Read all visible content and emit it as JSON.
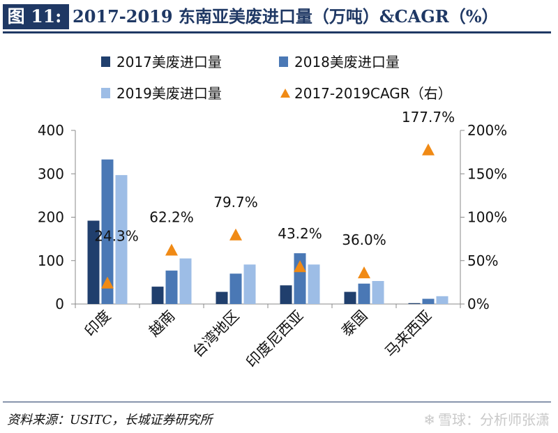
{
  "header": {
    "figure_label": "图 11:",
    "title": "2017-2019 东南亚美废进口量（万吨）&CAGR（%）"
  },
  "footer": {
    "source": "资料来源：USITC，长城证券研究所",
    "watermark": "雪球：分析师张潇",
    "watermark_icon": "snowball-icon"
  },
  "colors": {
    "series_2017": "#203f6d",
    "series_2018": "#4a78b5",
    "series_2019": "#9dbde6",
    "cagr": "#f08a15",
    "axis": "#888888",
    "text": "#111111"
  },
  "chart_data": {
    "type": "bar",
    "categories": [
      "印度",
      "越南",
      "台湾地区",
      "印度尼西亚",
      "泰国",
      "马来西亚"
    ],
    "series": [
      {
        "name": "2017美废进口量",
        "axis": "left",
        "values": [
          192,
          40,
          28,
          43,
          28,
          2
        ]
      },
      {
        "name": "2018美废进口量",
        "axis": "left",
        "values": [
          333,
          77,
          70,
          117,
          47,
          12
        ]
      },
      {
        "name": "2019美废进口量",
        "axis": "left",
        "values": [
          297,
          105,
          91,
          91,
          53,
          18
        ]
      },
      {
        "name": "2017-2019CAGR（右）",
        "type": "scatter",
        "axis": "right",
        "marker": "triangle",
        "values": [
          24.3,
          62.2,
          79.7,
          43.2,
          36.0,
          177.7
        ]
      }
    ],
    "cagr_labels": [
      "24.3%",
      "62.2%",
      "79.7%",
      "43.2%",
      "36.0%",
      "177.7%"
    ],
    "y_left": {
      "min": 0,
      "max": 400,
      "ticks": [
        0,
        100,
        200,
        300,
        400
      ],
      "tick_labels": [
        "0",
        "100",
        "200",
        "300",
        "400"
      ]
    },
    "y_right": {
      "min": 0,
      "max": 200,
      "ticks": [
        0,
        50,
        100,
        150,
        200
      ],
      "tick_labels": [
        "0%",
        "50%",
        "100%",
        "150%",
        "200%"
      ]
    },
    "legend_position": "top",
    "grid": false,
    "xlabel": "",
    "ylabel": ""
  }
}
